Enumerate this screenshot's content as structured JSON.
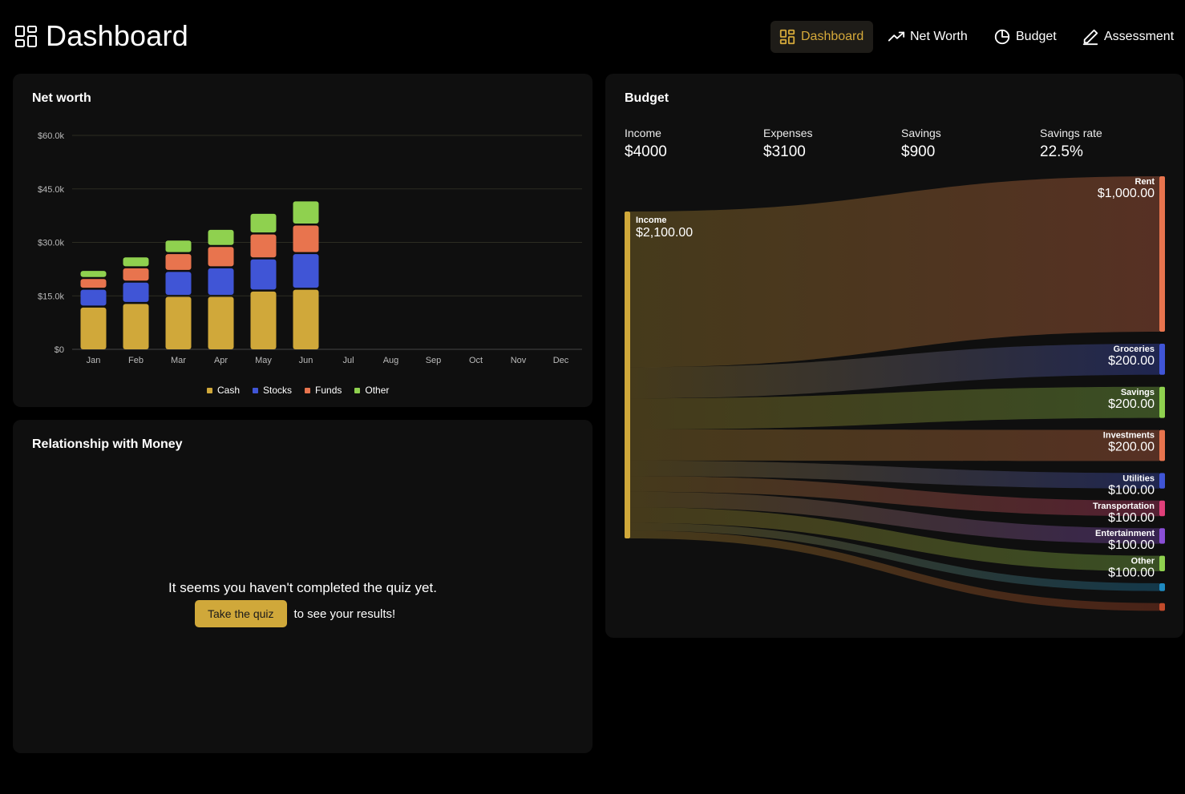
{
  "header": {
    "title": "Dashboard",
    "nav": [
      {
        "label": "Dashboard",
        "icon": "dashboard-grid-icon",
        "active": true
      },
      {
        "label": "Net Worth",
        "icon": "trending-up-icon",
        "active": false
      },
      {
        "label": "Budget",
        "icon": "pie-chart-icon",
        "active": false
      },
      {
        "label": "Assessment",
        "icon": "pencil-icon",
        "active": false
      }
    ]
  },
  "net_worth": {
    "title": "Net worth",
    "colors": {
      "Cash": "#d0a83a",
      "Stocks": "#4055d6",
      "Funds": "#e8744e",
      "Other": "#8fd14f"
    }
  },
  "chart_data": {
    "type": "bar",
    "stacked": true,
    "categories": [
      "Jan",
      "Feb",
      "Mar",
      "Apr",
      "May",
      "Jun",
      "Jul",
      "Aug",
      "Sep",
      "Oct",
      "Nov",
      "Dec"
    ],
    "series": [
      {
        "name": "Cash",
        "values": [
          12000,
          13000,
          15000,
          15000,
          16500,
          17000,
          null,
          null,
          null,
          null,
          null,
          null
        ]
      },
      {
        "name": "Stocks",
        "values": [
          5000,
          6000,
          7000,
          8000,
          9000,
          10000,
          null,
          null,
          null,
          null,
          null,
          null
        ]
      },
      {
        "name": "Funds",
        "values": [
          3000,
          4000,
          5000,
          6000,
          7000,
          8000,
          null,
          null,
          null,
          null,
          null,
          null
        ]
      },
      {
        "name": "Other",
        "values": [
          2000,
          2800,
          3500,
          4500,
          5500,
          6500,
          null,
          null,
          null,
          null,
          null,
          null
        ]
      }
    ],
    "yticks": [
      "$0",
      "$15.0k",
      "$30.0k",
      "$45.0k",
      "$60.0k"
    ],
    "ylim": [
      0,
      60000
    ],
    "grid": true,
    "legend": "bottom",
    "title": "Net worth",
    "xlabel": "",
    "ylabel": ""
  },
  "relationship": {
    "title": "Relationship with Money",
    "message": "It seems you haven't completed the quiz yet.",
    "button_label": "Take the quiz",
    "suffix": "to see your results!"
  },
  "budget": {
    "title": "Budget",
    "stats": [
      {
        "label": "Income",
        "value": "$4000"
      },
      {
        "label": "Expenses",
        "value": "$3100"
      },
      {
        "label": "Savings",
        "value": "$900"
      },
      {
        "label": "Savings rate",
        "value": "22.5%"
      }
    ],
    "sankey": {
      "source": {
        "label": "Income",
        "value": "$2,100.00",
        "amount": 2100,
        "color": "#d0a83a"
      },
      "targets": [
        {
          "label": "Rent",
          "value": "$1,000.00",
          "amount": 1000,
          "color": "#e8744e"
        },
        {
          "label": "Groceries",
          "value": "$200.00",
          "amount": 200,
          "color": "#4055d6"
        },
        {
          "label": "Savings",
          "value": "$200.00",
          "amount": 200,
          "color": "#8fd14f"
        },
        {
          "label": "Investments",
          "value": "$200.00",
          "amount": 200,
          "color": "#e8744e"
        },
        {
          "label": "Utilities",
          "value": "$100.00",
          "amount": 100,
          "color": "#4055d6"
        },
        {
          "label": "Transportation",
          "value": "$100.00",
          "amount": 100,
          "color": "#e0407a"
        },
        {
          "label": "Entertainment",
          "value": "$100.00",
          "amount": 100,
          "color": "#8a4fd6"
        },
        {
          "label": "Other",
          "value": "$100.00",
          "amount": 100,
          "color": "#8fd14f"
        },
        {
          "label": "",
          "value": "",
          "amount": 50,
          "color": "#1f8ac0"
        },
        {
          "label": "",
          "value": "",
          "amount": 50,
          "color": "#c04a2a"
        }
      ]
    }
  }
}
